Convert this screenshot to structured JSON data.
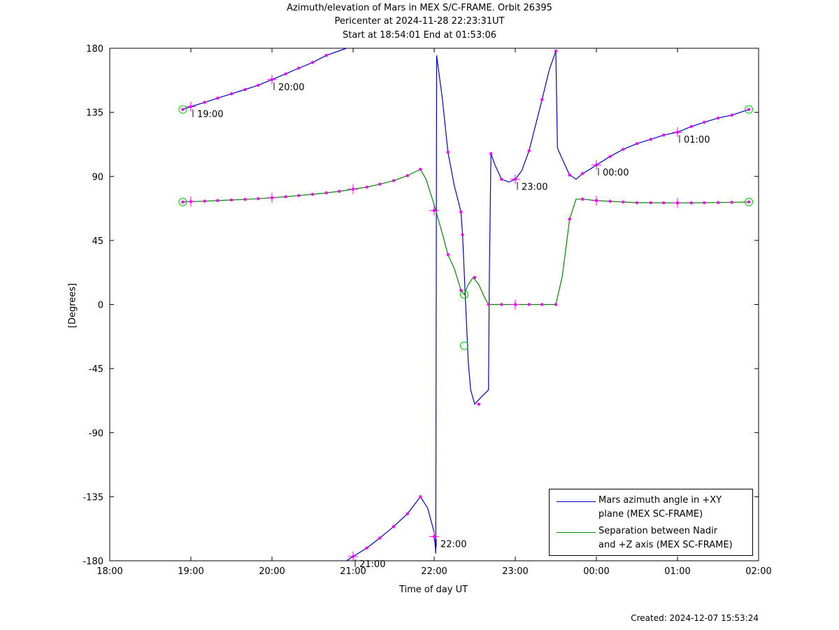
{
  "title": {
    "line1": "Azimuth/elevation of Mars in MEX S/C-FRAME.  Orbit 26395",
    "line2": "Pericenter at 2024-11-28 22:23:31UT",
    "line3": "Start at 18:54:01 End at 01:53:06"
  },
  "footer": {
    "created": "Created: 2024-12-07 15:53:24"
  },
  "colors": {
    "azimuth": "#0000cc",
    "separation": "#008800",
    "marker": "#ff00ff",
    "circle": "#00cc00",
    "axis": "#000000"
  },
  "chart_data": {
    "type": "line",
    "xlabel": "Time of day UT",
    "ylabel": "[Degrees]",
    "xlim": [
      18,
      26
    ],
    "ylim": [
      -180,
      180
    ],
    "x_ticks": [
      18,
      19,
      20,
      21,
      22,
      23,
      24,
      25,
      26
    ],
    "x_tick_labels": [
      "18:00",
      "19:00",
      "20:00",
      "21:00",
      "22:00",
      "23:00",
      "00:00",
      "01:00",
      "02:00"
    ],
    "y_ticks": [
      -180,
      -135,
      -90,
      -45,
      0,
      45,
      90,
      135,
      180
    ],
    "y_tick_labels": [
      "-180",
      "-135",
      "-90",
      "-45",
      "0",
      "45",
      "90",
      "135",
      "180"
    ],
    "legend_position": "bottom-right",
    "series": [
      {
        "name": "Mars azimuth angle in +XY plane (MEX SC-FRAME)",
        "legend_lines": [
          "Mars azimuth angle in +XY",
          "plane (MEX SC-FRAME)"
        ],
        "color": "#0000cc",
        "segments": [
          [
            [
              18.9,
              137
            ],
            [
              19.0,
              139
            ],
            [
              19.17,
              142
            ],
            [
              19.33,
              145
            ],
            [
              19.5,
              148
            ],
            [
              19.67,
              151
            ],
            [
              19.83,
              154
            ],
            [
              20.0,
              158
            ],
            [
              20.17,
              162
            ],
            [
              20.33,
              166
            ],
            [
              20.5,
              170
            ],
            [
              20.67,
              175
            ],
            [
              20.92,
              180
            ]
          ],
          [
            [
              20.92,
              -180
            ],
            [
              21.0,
              -177
            ],
            [
              21.17,
              -171
            ],
            [
              21.33,
              -164
            ],
            [
              21.5,
              -156
            ],
            [
              21.67,
              -147
            ],
            [
              21.83,
              -135
            ],
            [
              21.92,
              -143
            ],
            [
              22.0,
              -160
            ],
            [
              22.02,
              -175
            ],
            [
              22.03,
              175
            ],
            [
              22.1,
              145
            ],
            [
              22.17,
              107
            ],
            [
              22.25,
              83
            ],
            [
              22.3,
              72
            ],
            [
              22.33,
              65
            ],
            [
              22.35,
              49
            ],
            [
              22.38,
              10
            ],
            [
              22.42,
              -40
            ],
            [
              22.45,
              -60
            ],
            [
              22.5,
              -70
            ],
            [
              22.58,
              -65
            ],
            [
              22.67,
              -60
            ],
            [
              22.68,
              20
            ],
            [
              22.7,
              106
            ],
            [
              22.75,
              98
            ],
            [
              22.83,
              88
            ],
            [
              22.92,
              86
            ],
            [
              23.0,
              88
            ],
            [
              23.08,
              94
            ],
            [
              23.17,
              108
            ],
            [
              23.33,
              144
            ],
            [
              23.42,
              165
            ],
            [
              23.5,
              178
            ],
            [
              23.52,
              110
            ],
            [
              23.58,
              102
            ],
            [
              23.67,
              91
            ],
            [
              23.75,
              88
            ],
            [
              23.83,
              92
            ],
            [
              23.92,
              95
            ],
            [
              24.0,
              98
            ],
            [
              24.17,
              104
            ],
            [
              24.33,
              109
            ],
            [
              24.5,
              113
            ],
            [
              24.67,
              116
            ],
            [
              24.83,
              119
            ],
            [
              25.0,
              121
            ],
            [
              25.17,
              125
            ],
            [
              25.33,
              128
            ],
            [
              25.5,
              131
            ],
            [
              25.67,
              133
            ],
            [
              25.83,
              136
            ],
            [
              25.88,
              137
            ]
          ]
        ],
        "markers": [
          [
            18.9,
            137
          ],
          [
            19.0,
            139
          ],
          [
            19.17,
            142
          ],
          [
            19.33,
            145
          ],
          [
            19.5,
            148
          ],
          [
            19.67,
            151
          ],
          [
            19.83,
            154
          ],
          [
            20.0,
            158
          ],
          [
            20.17,
            162
          ],
          [
            20.33,
            166
          ],
          [
            20.5,
            170
          ],
          [
            20.67,
            175
          ],
          [
            21.0,
            -177
          ],
          [
            21.17,
            -171
          ],
          [
            21.33,
            -164
          ],
          [
            21.5,
            -156
          ],
          [
            21.67,
            -147
          ],
          [
            21.83,
            -135
          ],
          [
            22.0,
            -163
          ],
          [
            22.17,
            107
          ],
          [
            22.33,
            65
          ],
          [
            22.35,
            49
          ],
          [
            22.55,
            -70
          ],
          [
            22.7,
            106
          ],
          [
            22.83,
            88
          ],
          [
            23.0,
            88
          ],
          [
            23.17,
            108
          ],
          [
            23.33,
            144
          ],
          [
            23.5,
            178
          ],
          [
            23.67,
            91
          ],
          [
            23.83,
            92
          ],
          [
            24.0,
            98
          ],
          [
            24.17,
            104
          ],
          [
            24.33,
            109
          ],
          [
            24.5,
            113
          ],
          [
            24.67,
            116
          ],
          [
            24.83,
            119
          ],
          [
            25.0,
            121
          ],
          [
            25.17,
            125
          ],
          [
            25.33,
            128
          ],
          [
            25.5,
            131
          ],
          [
            25.67,
            133
          ],
          [
            25.88,
            137
          ]
        ],
        "hour_crosses": [
          [
            19.0,
            139
          ],
          [
            20.0,
            158
          ],
          [
            21.0,
            -177
          ],
          [
            22.0,
            -163
          ],
          [
            23.0,
            88
          ],
          [
            24.0,
            98
          ],
          [
            25.0,
            121
          ]
        ],
        "start_end_circles": [
          [
            18.9,
            137
          ],
          [
            25.88,
            137
          ],
          [
            22.37,
            -29
          ]
        ],
        "time_annotations": [
          {
            "x": 19.0,
            "y": 139,
            "label": "19:00"
          },
          {
            "x": 20.0,
            "y": 158,
            "label": "20:00"
          },
          {
            "x": 21.0,
            "y": -177,
            "label": "21:00"
          },
          {
            "x": 22.0,
            "y": -163,
            "label": "22:00"
          },
          {
            "x": 23.0,
            "y": 88,
            "label": "23:00"
          },
          {
            "x": 24.0,
            "y": 98,
            "label": "00:00"
          },
          {
            "x": 25.0,
            "y": 121,
            "label": "01:00"
          }
        ]
      },
      {
        "name": "Separation between Nadir and +Z axis (MEX SC-FRAME)",
        "legend_lines": [
          "Separation between Nadir",
          "and +Z axis (MEX SC-FRAME)"
        ],
        "color": "#008800",
        "segments": [
          [
            [
              18.9,
              72
            ],
            [
              19.0,
              72.3
            ],
            [
              19.17,
              72.6
            ],
            [
              19.33,
              73
            ],
            [
              19.5,
              73.4
            ],
            [
              19.67,
              73.8
            ],
            [
              19.83,
              74.3
            ],
            [
              20.0,
              75
            ],
            [
              20.17,
              75.7
            ],
            [
              20.33,
              76.5
            ],
            [
              20.5,
              77.4
            ],
            [
              20.67,
              78.4
            ],
            [
              20.83,
              79.5
            ],
            [
              21.0,
              81
            ],
            [
              21.17,
              82.5
            ],
            [
              21.33,
              84.5
            ],
            [
              21.5,
              87
            ],
            [
              21.67,
              90.5
            ],
            [
              21.83,
              95
            ],
            [
              21.9,
              88
            ],
            [
              22.0,
              70
            ],
            [
              22.1,
              50
            ],
            [
              22.17,
              35
            ],
            [
              22.25,
              25
            ],
            [
              22.33,
              10
            ],
            [
              22.37,
              7
            ],
            [
              22.42,
              14
            ],
            [
              22.48,
              19
            ],
            [
              22.55,
              14
            ],
            [
              22.62,
              5
            ],
            [
              22.67,
              0
            ],
            [
              22.83,
              0
            ],
            [
              23.0,
              0
            ],
            [
              23.17,
              0
            ],
            [
              23.33,
              0
            ],
            [
              23.5,
              0
            ],
            [
              23.58,
              20
            ],
            [
              23.67,
              60
            ],
            [
              23.75,
              74
            ],
            [
              23.83,
              74
            ],
            [
              24.0,
              73
            ],
            [
              24.17,
              72.5
            ],
            [
              24.33,
              72
            ],
            [
              24.5,
              71.5
            ],
            [
              24.67,
              71.5
            ],
            [
              24.83,
              71.4
            ],
            [
              25.0,
              71.4
            ],
            [
              25.17,
              71.4
            ],
            [
              25.33,
              71.5
            ],
            [
              25.5,
              71.6
            ],
            [
              25.67,
              71.8
            ],
            [
              25.88,
              72
            ]
          ]
        ],
        "markers": [
          [
            18.9,
            72
          ],
          [
            19.0,
            72.3
          ],
          [
            19.17,
            72.6
          ],
          [
            19.33,
            73
          ],
          [
            19.5,
            73.4
          ],
          [
            19.67,
            73.8
          ],
          [
            19.83,
            74.3
          ],
          [
            20.0,
            75
          ],
          [
            20.17,
            75.7
          ],
          [
            20.33,
            76.5
          ],
          [
            20.5,
            77.4
          ],
          [
            20.67,
            78.4
          ],
          [
            20.83,
            79.5
          ],
          [
            21.0,
            81
          ],
          [
            21.17,
            82.5
          ],
          [
            21.33,
            84.5
          ],
          [
            21.5,
            87
          ],
          [
            21.67,
            90.5
          ],
          [
            21.83,
            95
          ],
          [
            22.0,
            66
          ],
          [
            22.17,
            35
          ],
          [
            22.33,
            10
          ],
          [
            22.5,
            19
          ],
          [
            22.67,
            0
          ],
          [
            22.83,
            0
          ],
          [
            23.0,
            0
          ],
          [
            23.17,
            0
          ],
          [
            23.33,
            0
          ],
          [
            23.5,
            0
          ],
          [
            23.67,
            60
          ],
          [
            23.83,
            74
          ],
          [
            24.0,
            73
          ],
          [
            24.17,
            72.5
          ],
          [
            24.33,
            72
          ],
          [
            24.5,
            71.5
          ],
          [
            24.67,
            71.5
          ],
          [
            24.83,
            71.4
          ],
          [
            25.0,
            71.4
          ],
          [
            25.17,
            71.4
          ],
          [
            25.33,
            71.5
          ],
          [
            25.5,
            71.6
          ],
          [
            25.67,
            71.8
          ],
          [
            25.88,
            72
          ]
        ],
        "hour_crosses": [
          [
            19.0,
            72.3
          ],
          [
            20.0,
            75
          ],
          [
            21.0,
            81
          ],
          [
            22.0,
            66
          ],
          [
            23.0,
            0
          ],
          [
            24.0,
            73
          ],
          [
            25.0,
            71.4
          ]
        ],
        "start_end_circles": [
          [
            18.9,
            72
          ],
          [
            25.88,
            72
          ],
          [
            22.37,
            7
          ]
        ]
      }
    ]
  }
}
